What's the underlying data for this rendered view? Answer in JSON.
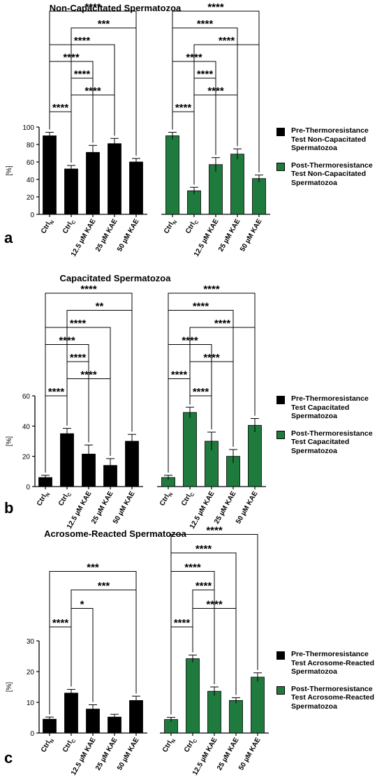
{
  "colors": {
    "pre": "#000000",
    "post": "#1f7a3d"
  },
  "chart_data": [
    {
      "letter": "a",
      "type": "bar",
      "title": "Non-Capacitated Spermatozoa",
      "ylabel": "[%]",
      "ylim": [
        0,
        100
      ],
      "yticks": [
        0,
        20,
        40,
        60,
        80,
        100
      ],
      "categories": [
        {
          "base": "Ctrl",
          "sub": "N"
        },
        {
          "base": "Ctrl",
          "sub": "C"
        },
        {
          "base": "12.5 µM KAE",
          "sub": ""
        },
        {
          "base": "25 µM KAE",
          "sub": ""
        },
        {
          "base": "50 µM KAE",
          "sub": ""
        }
      ],
      "series": [
        {
          "name": "Pre-Thermoresistance Test Non-Capacitated Spermatozoa",
          "legend_lines": [
            "Pre-Thermoresistance",
            "Test Non-Capacitated",
            "Spermatozoa"
          ],
          "color_key": "pre",
          "values": [
            90,
            52,
            71,
            81,
            60
          ],
          "errors": [
            4,
            4,
            8,
            6,
            4
          ]
        },
        {
          "name": "Post-Thermoresistance Test Non-Capacitated Spermatozoa",
          "legend_lines": [
            "Post-Thermoresistance",
            "Test Non-Capacitated",
            "Spermatozoa"
          ],
          "color_key": "post",
          "values": [
            90,
            27,
            57,
            69,
            41
          ],
          "errors": [
            4,
            4,
            8,
            6,
            4
          ]
        }
      ],
      "significance": [
        {
          "group": 0,
          "from": 0,
          "to": 1,
          "label": "****"
        },
        {
          "group": 0,
          "from": 1,
          "to": 3,
          "label": "****"
        },
        {
          "group": 0,
          "from": 1,
          "to": 2,
          "label": "****"
        },
        {
          "group": 0,
          "from": 0,
          "to": 2,
          "label": "****"
        },
        {
          "group": 0,
          "from": 0,
          "to": 3,
          "label": "****"
        },
        {
          "group": 0,
          "from": 1,
          "to": 4,
          "label": "***"
        },
        {
          "group": 0,
          "from": 0,
          "to": 4,
          "label": "****"
        },
        {
          "group": 1,
          "from": 0,
          "to": 1,
          "label": "****"
        },
        {
          "group": 1,
          "from": 1,
          "to": 3,
          "label": "****"
        },
        {
          "group": 1,
          "from": 1,
          "to": 2,
          "label": "****"
        },
        {
          "group": 1,
          "from": 0,
          "to": 2,
          "label": "****"
        },
        {
          "group": 1,
          "from": 1,
          "to": 4,
          "label": "****"
        },
        {
          "group": 1,
          "from": 0,
          "to": 3,
          "label": "****"
        },
        {
          "group": 1,
          "from": 0,
          "to": 4,
          "label": "****"
        }
      ]
    },
    {
      "letter": "b",
      "type": "bar",
      "title": "Capacitated Spermatozoa",
      "ylabel": "[%]",
      "ylim": [
        0,
        60
      ],
      "yticks": [
        0,
        20,
        40,
        60
      ],
      "categories": [
        {
          "base": "Ctrl",
          "sub": "N"
        },
        {
          "base": "Ctrl",
          "sub": "C"
        },
        {
          "base": "12.5 µM KAE",
          "sub": ""
        },
        {
          "base": "25 µM KAE",
          "sub": ""
        },
        {
          "base": "50 µM KAE",
          "sub": ""
        }
      ],
      "series": [
        {
          "name": "Pre-Thermoresistance Test Capacitated Spermatozoa",
          "legend_lines": [
            "Pre-Thermoresistance",
            "Test Capacitated",
            "Spermatozoa"
          ],
          "color_key": "pre",
          "values": [
            6,
            35,
            21.5,
            14,
            30
          ],
          "errors": [
            1.5,
            3.5,
            6,
            4.5,
            4.5
          ]
        },
        {
          "name": "Post-Thermoresistance Test Capacitated Spermatozoa",
          "legend_lines": [
            "Post-Thermoresistance",
            "Test Capacitated",
            "Spermatozoa"
          ],
          "color_key": "post",
          "values": [
            6,
            49,
            30,
            20,
            40.5
          ],
          "errors": [
            1.5,
            3.5,
            6,
            4.5,
            4.5
          ]
        }
      ],
      "significance": [
        {
          "group": 0,
          "from": 0,
          "to": 1,
          "label": "****"
        },
        {
          "group": 0,
          "from": 1,
          "to": 3,
          "label": "****"
        },
        {
          "group": 0,
          "from": 1,
          "to": 2,
          "label": "****"
        },
        {
          "group": 0,
          "from": 0,
          "to": 2,
          "label": "****"
        },
        {
          "group": 0,
          "from": 0,
          "to": 3,
          "label": "****"
        },
        {
          "group": 0,
          "from": 1,
          "to": 4,
          "label": "**"
        },
        {
          "group": 0,
          "from": 0,
          "to": 4,
          "label": "****"
        },
        {
          "group": 1,
          "from": 1,
          "to": 2,
          "label": "****"
        },
        {
          "group": 1,
          "from": 0,
          "to": 1,
          "label": "****"
        },
        {
          "group": 1,
          "from": 1,
          "to": 3,
          "label": "****"
        },
        {
          "group": 1,
          "from": 0,
          "to": 2,
          "label": "****"
        },
        {
          "group": 1,
          "from": 1,
          "to": 4,
          "label": "****"
        },
        {
          "group": 1,
          "from": 0,
          "to": 3,
          "label": "****"
        },
        {
          "group": 1,
          "from": 0,
          "to": 4,
          "label": "****"
        }
      ]
    },
    {
      "letter": "c",
      "type": "bar",
      "title": "Acrosome-Reacted Spermatozoa",
      "ylabel": "[%]",
      "ylim": [
        0,
        30
      ],
      "yticks": [
        0,
        10,
        20,
        30
      ],
      "categories": [
        {
          "base": "Ctrl",
          "sub": "N"
        },
        {
          "base": "Ctrl",
          "sub": "C"
        },
        {
          "base": "12.5 µM KAE",
          "sub": ""
        },
        {
          "base": "25 µM KAE",
          "sub": ""
        },
        {
          "base": "50 µM KAE",
          "sub": ""
        }
      ],
      "series": [
        {
          "name": "Pre-Thermoresistance Test Acrosome-Reacted Spermatozoa",
          "legend_lines": [
            "Pre-Thermoresistance",
            "Test Acrosome-Reacted",
            "Spermatozoa"
          ],
          "color_key": "pre",
          "values": [
            4.5,
            13,
            7.8,
            5.2,
            10.6
          ],
          "errors": [
            0.7,
            1.2,
            1.4,
            0.9,
            1.4
          ]
        },
        {
          "name": "Post-Thermoresistance Test Acrosome-Reacted Spermatozoa",
          "legend_lines": [
            "Post-Thermoresistance",
            "Test Acrosome-Reacted",
            "Spermatozoa"
          ],
          "color_key": "post",
          "values": [
            4.4,
            24.2,
            13.6,
            10.6,
            18.2
          ],
          "errors": [
            0.7,
            1.2,
            1.4,
            0.9,
            1.4
          ]
        }
      ],
      "significance": [
        {
          "group": 0,
          "from": 0,
          "to": 1,
          "label": "****"
        },
        {
          "group": 0,
          "from": 1,
          "to": 2,
          "label": "*"
        },
        {
          "group": 0,
          "from": 1,
          "to": 4,
          "label": "***"
        },
        {
          "group": 0,
          "from": 0,
          "to": 4,
          "label": "***"
        },
        {
          "group": 1,
          "from": 0,
          "to": 1,
          "label": "****"
        },
        {
          "group": 1,
          "from": 1,
          "to": 3,
          "label": "****"
        },
        {
          "group": 1,
          "from": 1,
          "to": 2,
          "label": "****"
        },
        {
          "group": 1,
          "from": 0,
          "to": 2,
          "label": "****"
        },
        {
          "group": 1,
          "from": 0,
          "to": 3,
          "label": "****"
        },
        {
          "group": 1,
          "from": 0,
          "to": 4,
          "label": "****"
        }
      ]
    }
  ]
}
